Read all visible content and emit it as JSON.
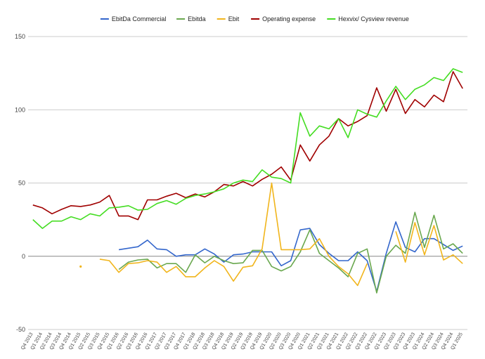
{
  "chart_data": {
    "type": "line",
    "title": "",
    "xlabel": "",
    "ylabel": "",
    "ylim": [
      -50,
      150
    ],
    "yticks": [
      -50,
      0,
      50,
      100,
      150
    ],
    "grid": "horizontal",
    "legend_position": "top-center",
    "categories": [
      "Q4 2013",
      "Q1 2014",
      "Q2 2014",
      "Q3 2014",
      "Q4 2014",
      "Q1 2015",
      "Q2 2015",
      "Q3 2015",
      "Q4 2015",
      "Q1 2016",
      "Q2 2016",
      "Q3 2016",
      "Q4 2016",
      "Q1 2017",
      "Q2 2017",
      "Q3 2017",
      "Q4 2017",
      "Q1 2018",
      "Q2 2018",
      "Q3 2018",
      "Q4 2018",
      "Q1 2019",
      "Q2 2019",
      "Q3 2019",
      "Q4 2019",
      "Q1 2020",
      "Q2 2020",
      "Q3 2020",
      "Q4 2020",
      "Q1 2021",
      "Q2 2021",
      "Q3 2021",
      "Q4 2021",
      "Q1 2022",
      "Q2 2022",
      "Q3 2022",
      "Q4 2022",
      "Q1 2023",
      "Q2 2023",
      "Q3 2023",
      "Q4 2023",
      "Q1 2024",
      "Q2 2024",
      "Q3 2024",
      "Q4 2024",
      "Q1 2025"
    ],
    "series": [
      {
        "name": "EbitDa Commercial",
        "color": "#3366cc",
        "values": [
          null,
          null,
          null,
          null,
          null,
          null,
          null,
          null,
          null,
          4.5,
          5.5,
          6.5,
          11,
          5,
          4.5,
          0,
          1,
          1,
          5,
          1.5,
          -4,
          1,
          1.5,
          3,
          3,
          3,
          -6.5,
          -3,
          18,
          19,
          8,
          2,
          -3,
          -3,
          3,
          -3,
          -24,
          2,
          23.5,
          6,
          3,
          12,
          12,
          8,
          4,
          7
        ]
      },
      {
        "name": "Ebitda",
        "color": "#6aa84f",
        "values": [
          null,
          null,
          null,
          null,
          null,
          null,
          null,
          null,
          null,
          -9,
          -4,
          -2.5,
          -2,
          -8,
          -5,
          -5,
          -11,
          1,
          -4.5,
          0,
          -3,
          -5,
          -4.5,
          4,
          4,
          -7,
          -10,
          -7,
          3,
          18,
          2,
          -3,
          -8,
          -14,
          2,
          5,
          -25,
          0,
          7.5,
          2,
          30,
          6,
          28,
          5,
          8.5,
          2
        ]
      },
      {
        "name": "Ebit",
        "color": "#f1b51c",
        "values": [
          null,
          null,
          null,
          null,
          null,
          -7,
          null,
          -2,
          -3,
          -11,
          -5,
          -4.5,
          -3,
          -4,
          -11,
          -7,
          -14,
          -14,
          -8,
          -3,
          -7,
          -17,
          -7.5,
          -6.5,
          5,
          50,
          4.5,
          4.5,
          4.5,
          5,
          12,
          0,
          -7,
          -12,
          -20,
          -5,
          null,
          null,
          17,
          -4,
          23,
          1,
          21,
          -2.5,
          1,
          -5
        ]
      },
      {
        "name": "Operating expense",
        "color": "#a00000",
        "values": [
          35,
          33,
          29,
          32,
          34.5,
          34,
          35,
          37,
          41.5,
          27.5,
          27.5,
          25,
          38.5,
          38.5,
          41,
          43,
          40,
          42.5,
          40.5,
          44,
          49,
          48,
          51,
          48,
          52.5,
          56,
          61,
          52,
          76,
          65,
          76,
          82,
          94,
          89,
          92,
          96,
          115,
          99,
          114,
          97.5,
          107,
          102,
          110,
          105.5,
          126,
          114.5
        ]
      },
      {
        "name": "Hexvix/ Cysview revenue",
        "color": "#44dd22",
        "values": [
          25,
          19,
          24,
          24,
          27,
          25,
          29,
          27.5,
          33,
          33.5,
          34.5,
          31.5,
          32,
          36,
          38,
          35.5,
          39.5,
          41.5,
          42.5,
          44,
          46,
          50,
          52,
          51,
          59,
          54,
          53,
          50,
          98,
          82,
          89,
          87,
          94,
          81,
          100,
          97,
          95,
          106,
          116,
          107,
          114,
          117,
          122,
          120,
          128,
          125.5
        ]
      }
    ]
  }
}
